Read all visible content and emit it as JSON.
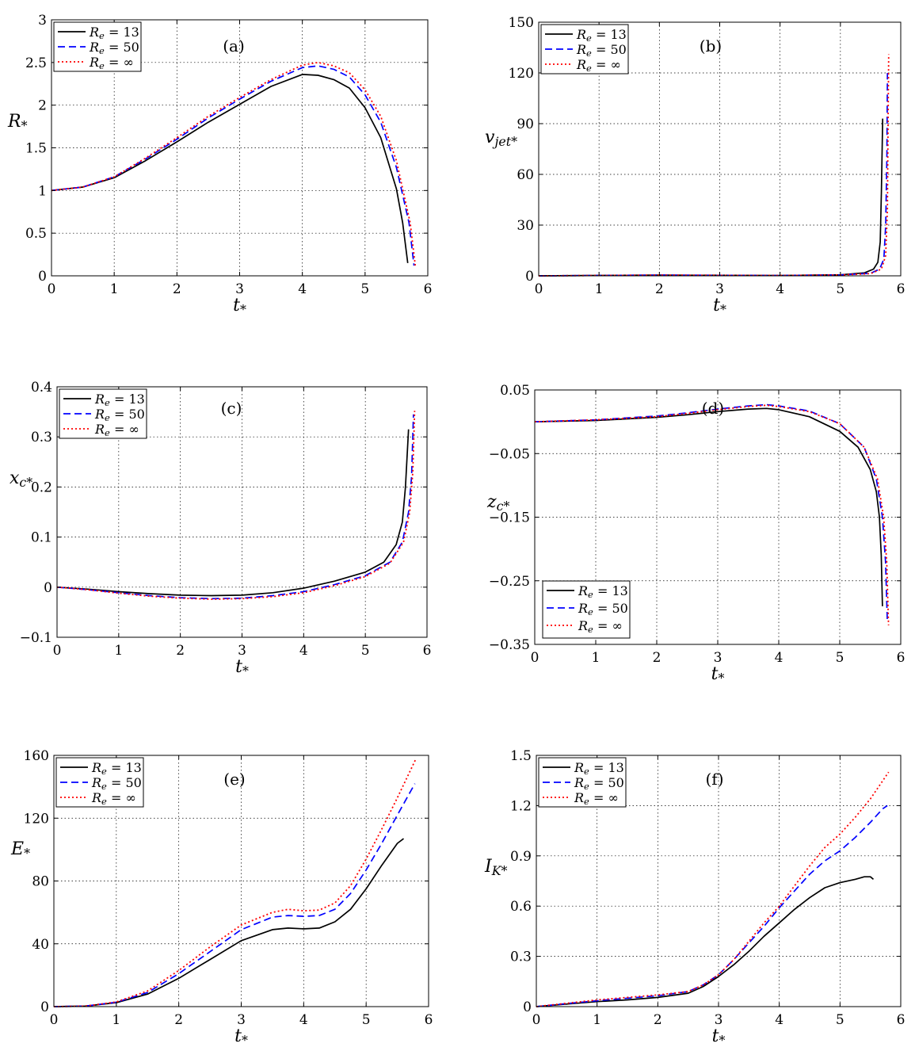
{
  "figure_title": "",
  "legend_labels": [
    "Re = 13",
    "Re = 50",
    "Re = ∞"
  ],
  "series_colors": [
    "#000000",
    "#0000ff",
    "#ff0000"
  ],
  "chart_data": [
    {
      "type": "line",
      "label": "(a)",
      "ylabel": "R*",
      "xlabel": "t*",
      "xlim": [
        0,
        6
      ],
      "ylim": [
        0,
        3
      ],
      "xticks": [
        0,
        1,
        2,
        3,
        4,
        5,
        6
      ],
      "yticks": [
        0,
        0.5,
        1,
        1.5,
        2,
        2.5,
        3
      ],
      "ytick_labels": [
        "0",
        "0.5",
        "1",
        "1.5",
        "2",
        "2.5",
        "3"
      ],
      "legend_pos": "top-left",
      "series": [
        {
          "name": "Re = 13",
          "x": [
            0,
            0.5,
            1,
            1.5,
            2,
            2.5,
            3,
            3.5,
            4,
            4.25,
            4.5,
            4.75,
            5,
            5.25,
            5.5,
            5.6,
            5.68
          ],
          "y": [
            1,
            1.04,
            1.15,
            1.35,
            1.57,
            1.8,
            2.01,
            2.22,
            2.36,
            2.35,
            2.3,
            2.2,
            1.97,
            1.62,
            1.02,
            0.62,
            0.15
          ]
        },
        {
          "name": "Re = 50",
          "x": [
            0,
            0.5,
            1,
            1.5,
            2,
            2.5,
            3,
            3.5,
            4,
            4.25,
            4.5,
            4.75,
            5,
            5.25,
            5.5,
            5.7,
            5.78
          ],
          "y": [
            1,
            1.04,
            1.16,
            1.37,
            1.6,
            1.85,
            2.07,
            2.28,
            2.44,
            2.46,
            2.42,
            2.33,
            2.12,
            1.8,
            1.27,
            0.62,
            0.12
          ]
        },
        {
          "name": "Re = ∞",
          "x": [
            0,
            0.5,
            1,
            1.5,
            2,
            2.5,
            3,
            3.5,
            4,
            4.25,
            4.5,
            4.75,
            5,
            5.25,
            5.5,
            5.72,
            5.8
          ],
          "y": [
            1,
            1.04,
            1.16,
            1.38,
            1.62,
            1.87,
            2.09,
            2.3,
            2.47,
            2.5,
            2.46,
            2.38,
            2.18,
            1.87,
            1.35,
            0.62,
            0.12
          ]
        }
      ]
    },
    {
      "type": "line",
      "label": "(b)",
      "ylabel": "vjet*",
      "xlabel": "t*",
      "xlim": [
        0,
        6
      ],
      "ylim": [
        0,
        150
      ],
      "xticks": [
        0,
        1,
        2,
        3,
        4,
        5,
        6
      ],
      "yticks": [
        0,
        30,
        60,
        90,
        120,
        150
      ],
      "ytick_labels": [
        "0",
        "30",
        "60",
        "90",
        "120",
        "150"
      ],
      "legend_pos": "top-left",
      "series": [
        {
          "name": "Re = 13",
          "x": [
            0,
            2,
            4,
            5,
            5.4,
            5.55,
            5.62,
            5.66,
            5.68,
            5.7
          ],
          "y": [
            0,
            0.4,
            0.2,
            0.6,
            1.8,
            4,
            8,
            20,
            50,
            93
          ]
        },
        {
          "name": "Re = 50",
          "x": [
            0,
            2,
            4,
            5,
            5.5,
            5.65,
            5.72,
            5.75,
            5.77,
            5.78
          ],
          "y": [
            0,
            0.4,
            0.2,
            0.5,
            1.5,
            4,
            10,
            30,
            70,
            120
          ]
        },
        {
          "name": "Re = ∞",
          "x": [
            0,
            2,
            4,
            5,
            5.5,
            5.68,
            5.75,
            5.78,
            5.79,
            5.8
          ],
          "y": [
            0,
            0.4,
            0.2,
            0.5,
            1.3,
            4,
            12,
            40,
            90,
            131
          ]
        }
      ]
    },
    {
      "type": "line",
      "label": "(c)",
      "ylabel": "xc*",
      "xlabel": "t*",
      "xlim": [
        0,
        6
      ],
      "ylim": [
        -0.1,
        0.4
      ],
      "xticks": [
        0,
        1,
        2,
        3,
        4,
        5,
        6
      ],
      "yticks": [
        -0.1,
        0,
        0.1,
        0.2,
        0.3,
        0.4
      ],
      "ytick_labels": [
        "−0.1",
        "0",
        "0.1",
        "0.2",
        "0.3",
        "0.4"
      ],
      "legend_pos": "top-left",
      "series": [
        {
          "name": "Re = 13",
          "x": [
            0,
            0.5,
            1,
            1.5,
            2,
            2.5,
            3,
            3.5,
            4,
            4.5,
            5,
            5.3,
            5.5,
            5.6,
            5.65,
            5.7
          ],
          "y": [
            0,
            -0.004,
            -0.009,
            -0.013,
            -0.016,
            -0.017,
            -0.016,
            -0.011,
            -0.002,
            0.012,
            0.03,
            0.05,
            0.085,
            0.13,
            0.2,
            0.315
          ]
        },
        {
          "name": "Re = 50",
          "x": [
            0,
            0.5,
            1,
            1.5,
            2,
            2.5,
            3,
            3.5,
            4,
            4.5,
            5,
            5.4,
            5.6,
            5.7,
            5.75,
            5.78
          ],
          "y": [
            0,
            -0.005,
            -0.011,
            -0.017,
            -0.021,
            -0.023,
            -0.022,
            -0.017,
            -0.009,
            0.005,
            0.023,
            0.05,
            0.09,
            0.15,
            0.22,
            0.345
          ]
        },
        {
          "name": "Re = ∞",
          "x": [
            0,
            0.5,
            1,
            1.5,
            2,
            2.5,
            3,
            3.5,
            4,
            4.5,
            5,
            5.4,
            5.62,
            5.72,
            5.77,
            5.8
          ],
          "y": [
            0,
            -0.005,
            -0.012,
            -0.018,
            -0.022,
            -0.024,
            -0.023,
            -0.019,
            -0.011,
            0.003,
            0.021,
            0.048,
            0.09,
            0.15,
            0.23,
            0.352
          ]
        }
      ]
    },
    {
      "type": "line",
      "label": "(d)",
      "ylabel": "zc*",
      "xlabel": "t*",
      "xlim": [
        0,
        6
      ],
      "ylim": [
        -0.35,
        0.05
      ],
      "xticks": [
        0,
        1,
        2,
        3,
        4,
        5,
        6
      ],
      "yticks": [
        -0.35,
        -0.25,
        -0.15,
        -0.05,
        0.05
      ],
      "ytick_labels": [
        "−0.35",
        "−0.25",
        "−0.15",
        "−0.05",
        "0.05"
      ],
      "legend_pos": "bottom-left",
      "series": [
        {
          "name": "Re = 13",
          "x": [
            0,
            1,
            2,
            2.5,
            3,
            3.5,
            3.8,
            4,
            4.5,
            5,
            5.3,
            5.5,
            5.6,
            5.65,
            5.68,
            5.7
          ],
          "y": [
            0,
            0.002,
            0.007,
            0.011,
            0.016,
            0.02,
            0.021,
            0.019,
            0.008,
            -0.015,
            -0.04,
            -0.075,
            -0.11,
            -0.15,
            -0.21,
            -0.29
          ]
        },
        {
          "name": "Re = 50",
          "x": [
            0,
            1,
            2,
            2.5,
            3,
            3.5,
            3.8,
            4,
            4.5,
            5,
            5.4,
            5.6,
            5.7,
            5.75,
            5.78
          ],
          "y": [
            0,
            0.003,
            0.009,
            0.014,
            0.02,
            0.025,
            0.027,
            0.025,
            0.017,
            -0.003,
            -0.04,
            -0.09,
            -0.15,
            -0.22,
            -0.315
          ]
        },
        {
          "name": "Re = ∞",
          "x": [
            0,
            1,
            2,
            2.5,
            3,
            3.5,
            3.8,
            4,
            4.5,
            5,
            5.4,
            5.62,
            5.72,
            5.77,
            5.8
          ],
          "y": [
            0,
            0.003,
            0.008,
            0.013,
            0.019,
            0.024,
            0.026,
            0.024,
            0.016,
            -0.003,
            -0.04,
            -0.09,
            -0.15,
            -0.22,
            -0.32
          ]
        }
      ]
    },
    {
      "type": "line",
      "label": "(e)",
      "ylabel": "E*",
      "xlabel": "t*",
      "xlim": [
        0,
        6
      ],
      "ylim": [
        0,
        160
      ],
      "xticks": [
        0,
        1,
        2,
        3,
        4,
        5,
        6
      ],
      "yticks": [
        0,
        40,
        80,
        120,
        160
      ],
      "ytick_labels": [
        "0",
        "40",
        "80",
        "120",
        "160"
      ],
      "legend_pos": "top-left",
      "series": [
        {
          "name": "Re = 13",
          "x": [
            0,
            0.5,
            1,
            1.5,
            2,
            2.5,
            3,
            3.5,
            3.75,
            4,
            4.25,
            4.5,
            4.75,
            5,
            5.25,
            5.5,
            5.6
          ],
          "y": [
            0,
            0.3,
            2.5,
            8,
            18,
            30,
            42,
            49,
            50,
            49.5,
            50,
            54,
            62,
            75,
            90,
            104,
            107
          ]
        },
        {
          "name": "Re = 50",
          "x": [
            0,
            0.5,
            1,
            1.5,
            2,
            2.5,
            3,
            3.5,
            3.75,
            4,
            4.25,
            4.5,
            4.75,
            5,
            5.25,
            5.5,
            5.78
          ],
          "y": [
            0,
            0.3,
            2.8,
            9,
            21,
            35,
            49,
            57,
            58,
            57.5,
            58,
            62,
            72,
            87,
            104,
            122,
            142
          ]
        },
        {
          "name": "Re = ∞",
          "x": [
            0,
            0.5,
            1,
            1.5,
            2,
            2.5,
            3,
            3.5,
            3.75,
            4,
            4.25,
            4.5,
            4.75,
            5,
            5.25,
            5.5,
            5.8
          ],
          "y": [
            0,
            0.3,
            3,
            10,
            23,
            38,
            52,
            60,
            62,
            61,
            61.5,
            66,
            77,
            94,
            113,
            133,
            158
          ]
        }
      ]
    },
    {
      "type": "line",
      "label": "(f)",
      "ylabel": "IK*",
      "xlabel": "t*",
      "xlim": [
        0,
        6
      ],
      "ylim": [
        0,
        1.5
      ],
      "xticks": [
        0,
        1,
        2,
        3,
        4,
        5,
        6
      ],
      "yticks": [
        0,
        0.3,
        0.6,
        0.9,
        1.2,
        1.5
      ],
      "ytick_labels": [
        "0",
        "0.3",
        "0.6",
        "0.9",
        "1.2",
        "1.5"
      ],
      "legend_pos": "top-left",
      "series": [
        {
          "name": "Re = 13",
          "x": [
            0,
            0.5,
            1,
            1.5,
            2,
            2.5,
            2.75,
            3,
            3.25,
            3.5,
            3.75,
            4,
            4.25,
            4.5,
            4.75,
            5,
            5.25,
            5.4,
            5.5,
            5.55
          ],
          "y": [
            0,
            0.015,
            0.03,
            0.04,
            0.055,
            0.08,
            0.12,
            0.18,
            0.25,
            0.33,
            0.42,
            0.5,
            0.58,
            0.65,
            0.71,
            0.74,
            0.76,
            0.775,
            0.775,
            0.76
          ]
        },
        {
          "name": "Re = 50",
          "x": [
            0,
            0.5,
            1,
            1.5,
            2,
            2.5,
            2.75,
            3,
            3.25,
            3.5,
            3.75,
            4,
            4.25,
            4.5,
            4.75,
            5,
            5.25,
            5.5,
            5.7,
            5.78
          ],
          "y": [
            0,
            0.018,
            0.035,
            0.05,
            0.065,
            0.09,
            0.13,
            0.19,
            0.28,
            0.38,
            0.48,
            0.59,
            0.69,
            0.79,
            0.87,
            0.93,
            1.01,
            1.1,
            1.18,
            1.2
          ]
        },
        {
          "name": "Re = ∞",
          "x": [
            0,
            0.5,
            1,
            1.5,
            2,
            2.5,
            2.75,
            3,
            3.25,
            3.5,
            3.75,
            4,
            4.25,
            4.5,
            4.75,
            5,
            5.25,
            5.5,
            5.8
          ],
          "y": [
            0,
            0.02,
            0.04,
            0.055,
            0.07,
            0.09,
            0.13,
            0.19,
            0.28,
            0.39,
            0.5,
            0.6,
            0.72,
            0.84,
            0.95,
            1.03,
            1.13,
            1.24,
            1.4
          ]
        }
      ]
    }
  ]
}
